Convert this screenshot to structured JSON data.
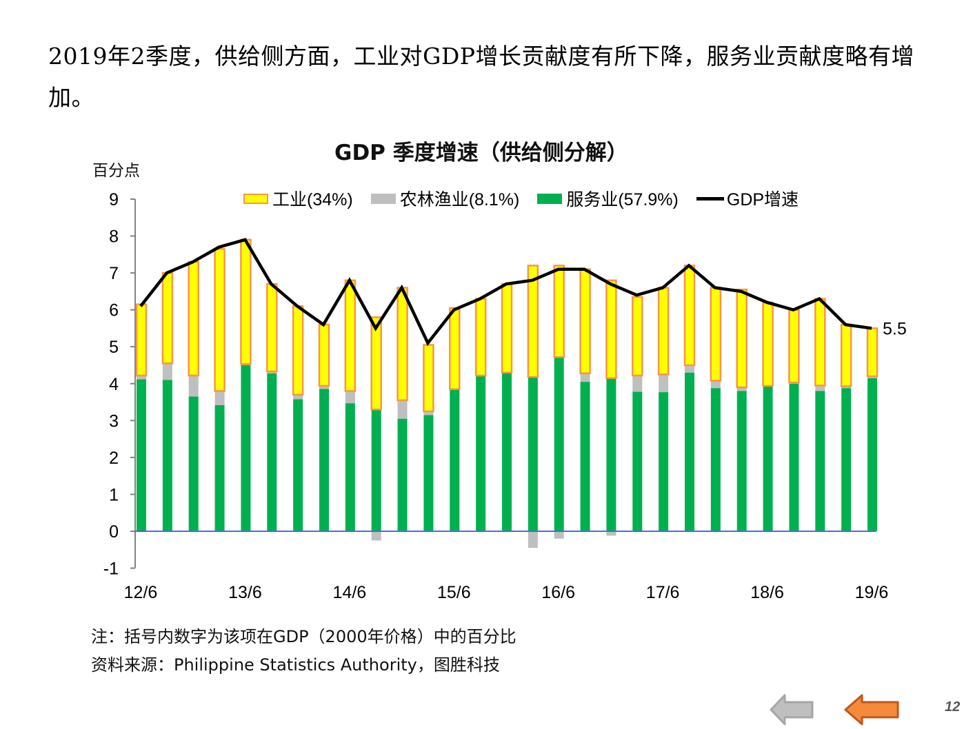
{
  "headline": "2019年2季度，供给侧方面，工业对GDP增长贡献度有所下降，服务业贡献度略有增加。",
  "page_number": "12",
  "nav": {
    "prev_icon": "arrow-left-icon",
    "back_icon": "arrow-left-icon",
    "prev_color": "#bfbfbf",
    "back_color": "#f58a3a"
  },
  "notes": {
    "note": "注：括号内数字为该项在GDP（2000年价格）中的百分比",
    "source": "资料来源：Philippine Statistics Authority，图胜科技"
  },
  "chart_data": {
    "type": "bar",
    "stacked": true,
    "title": "GDP 季度增速（供给侧分解）",
    "ylabel": "百分点",
    "ylim": [
      -1,
      9
    ],
    "yticks": [
      "-1",
      "0",
      "1",
      "2",
      "3",
      "4",
      "5",
      "6",
      "7",
      "8",
      "9"
    ],
    "xtick_labels": [
      "12/6",
      "13/6",
      "14/6",
      "15/6",
      "16/6",
      "17/6",
      "18/6",
      "19/6"
    ],
    "categories": [
      "12Q2",
      "12Q3",
      "12Q4",
      "13Q1",
      "13Q2",
      "13Q3",
      "13Q4",
      "14Q1",
      "14Q2",
      "14Q3",
      "14Q4",
      "15Q1",
      "15Q2",
      "15Q3",
      "15Q4",
      "16Q1",
      "16Q2",
      "16Q3",
      "16Q4",
      "17Q1",
      "17Q2",
      "17Q3",
      "17Q4",
      "18Q1",
      "18Q2",
      "18Q3",
      "18Q4",
      "19Q1",
      "19Q2"
    ],
    "legend_position": "top",
    "series": [
      {
        "name": "服务业(57.9%)",
        "color": "#00b050",
        "values": [
          4.12,
          4.1,
          3.65,
          3.42,
          4.5,
          4.28,
          3.58,
          3.86,
          3.47,
          3.3,
          3.05,
          3.15,
          3.85,
          4.22,
          4.3,
          4.18,
          4.72,
          4.05,
          4.15,
          3.78,
          3.77,
          4.3,
          3.88,
          3.8,
          3.92,
          4.0,
          3.8,
          3.88,
          4.15
        ]
      },
      {
        "name": "农林渔业(8.1%)",
        "color": "#bfbfbf",
        "values": [
          0.1,
          0.45,
          0.57,
          0.38,
          0.03,
          0.05,
          0.12,
          0.08,
          0.33,
          -0.25,
          0.5,
          0.1,
          0.0,
          0.0,
          0.0,
          -0.45,
          -0.2,
          0.23,
          -0.12,
          0.44,
          0.48,
          0.2,
          0.2,
          0.1,
          0.02,
          0.03,
          0.15,
          0.05,
          0.05
        ]
      },
      {
        "name": "工业(34%)",
        "color": "#ffff00",
        "border": "#f79646",
        "values": [
          1.93,
          2.45,
          3.08,
          3.85,
          3.37,
          2.37,
          2.4,
          1.66,
          3.0,
          2.5,
          3.05,
          1.8,
          2.2,
          2.08,
          2.4,
          3.02,
          2.48,
          2.82,
          2.65,
          2.13,
          2.35,
          2.7,
          2.52,
          2.65,
          2.26,
          1.97,
          2.35,
          1.67,
          1.3
        ]
      },
      {
        "name": "GDP增速",
        "type": "line",
        "color": "#000000",
        "values": [
          6.1,
          7.0,
          7.3,
          7.7,
          7.9,
          6.7,
          6.1,
          5.6,
          6.8,
          5.5,
          6.6,
          5.1,
          6.0,
          6.3,
          6.7,
          6.8,
          7.1,
          7.1,
          6.7,
          6.4,
          6.6,
          7.2,
          6.6,
          6.5,
          6.2,
          6.0,
          6.3,
          5.6,
          5.5
        ]
      }
    ],
    "annotations": [
      {
        "text": "5.5",
        "series": "GDP增速",
        "category": "19Q2"
      }
    ],
    "zero_line_color": "#4472c4"
  }
}
